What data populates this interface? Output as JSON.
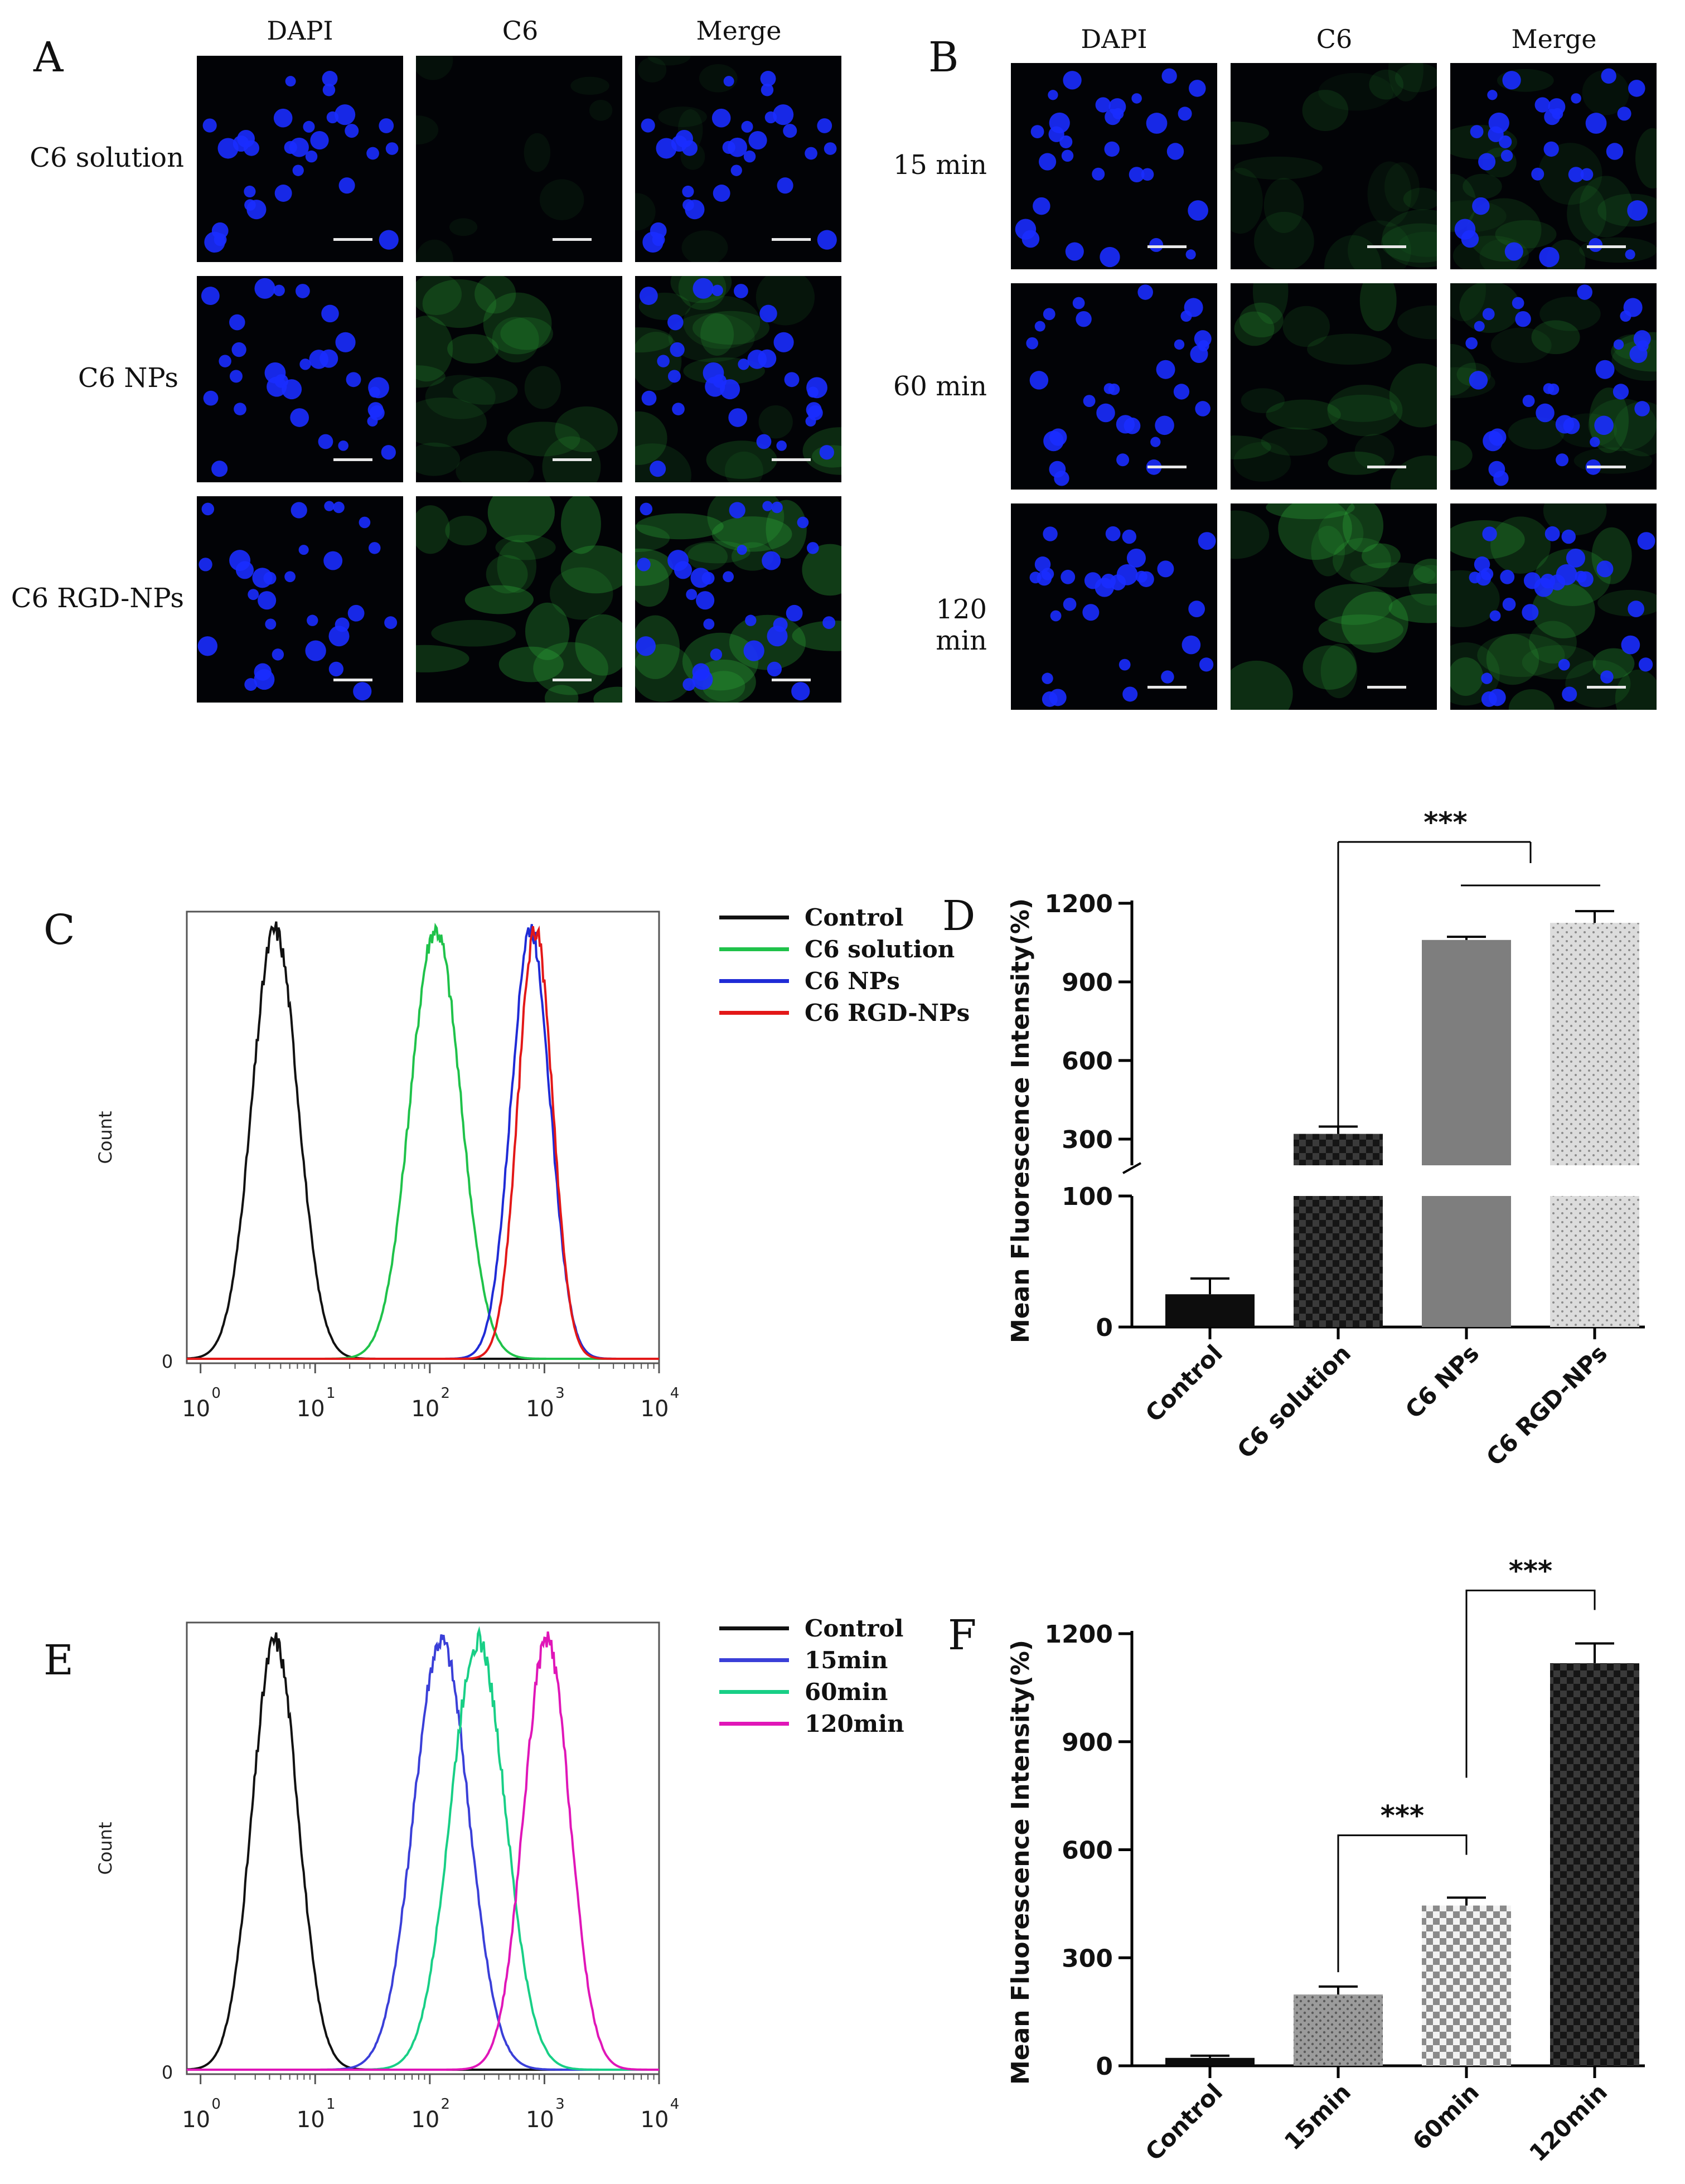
{
  "panels": {
    "A": {
      "letter": "A",
      "columns": [
        "DAPI",
        "C6",
        "Merge"
      ],
      "rows": [
        "C6 solution",
        "C6 NPs",
        "C6 RGD-NPs"
      ],
      "green_intensity": [
        0.05,
        0.55,
        0.85
      ]
    },
    "B": {
      "letter": "B",
      "columns": [
        "DAPI",
        "C6",
        "Merge"
      ],
      "rows": [
        "15 min",
        "60 min",
        "120 min"
      ],
      "green_intensity": [
        0.35,
        0.5,
        0.8
      ]
    },
    "C": {
      "letter": "C"
    },
    "D": {
      "letter": "D"
    },
    "E": {
      "letter": "E"
    },
    "F": {
      "letter": "F"
    }
  },
  "colors": {
    "dapi": "#1a2cff",
    "c6": "#2fae3a",
    "control": "#111111",
    "c6_solution": "#1fc24a",
    "c6_nps": "#1f2bd6",
    "c6_rgd_nps": "#e31818",
    "t15": "#3a3fd8",
    "t60": "#18cf86",
    "t120": "#e016b8"
  },
  "chart_data": [
    {
      "id": "C",
      "type": "line",
      "xscale": "log",
      "xlim": [
        1,
        10000
      ],
      "x_tick_labels": [
        "10",
        "10",
        "10",
        "10",
        "10"
      ],
      "x_tick_exponents": [
        "0",
        "1",
        "2",
        "3",
        "4"
      ],
      "ylabel": "Count",
      "y_zero_label": "0",
      "legend_position": "right",
      "series": [
        {
          "name": "Control",
          "color": "#111111",
          "peak_log10": 0.65,
          "sigma": 0.2
        },
        {
          "name": "C6 solution",
          "color": "#1fc24a",
          "peak_log10": 2.05,
          "sigma": 0.22
        },
        {
          "name": "C6 NPs",
          "color": "#1f2bd6",
          "peak_log10": 2.88,
          "sigma": 0.17
        },
        {
          "name": "C6 RGD-NPs",
          "color": "#e31818",
          "peak_log10": 2.92,
          "sigma": 0.15
        }
      ]
    },
    {
      "id": "D",
      "type": "bar",
      "ylabel": "Mean Fluorescence Intensity(%)",
      "ylim": [
        0,
        1200
      ],
      "axis_break": [
        100,
        200
      ],
      "y_ticks": [
        "0",
        "100",
        "300",
        "600",
        "900",
        "1200"
      ],
      "categories": [
        "Control",
        "C6 solution",
        "C6 NPs",
        "C6 RGD-NPs"
      ],
      "values": [
        25,
        320,
        1060,
        1125
      ],
      "errors": [
        12,
        28,
        12,
        45
      ],
      "significance": [
        {
          "label": "***"
        }
      ],
      "patterns": [
        "solid-black",
        "checker-dark",
        "solid-grey",
        "dots-light"
      ]
    },
    {
      "id": "E",
      "type": "line",
      "xscale": "log",
      "xlim": [
        1,
        10000
      ],
      "x_tick_labels": [
        "10",
        "10",
        "10",
        "10",
        "10"
      ],
      "x_tick_exponents": [
        "0",
        "1",
        "2",
        "3",
        "4"
      ],
      "ylabel": "Count",
      "y_zero_label": "0",
      "legend_position": "right",
      "series": [
        {
          "name": "Control",
          "color": "#111111",
          "peak_log10": 0.65,
          "sigma": 0.2
        },
        {
          "name": "15min",
          "color": "#3a3fd8",
          "peak_log10": 2.1,
          "sigma": 0.24
        },
        {
          "name": "60min",
          "color": "#18cf86",
          "peak_log10": 2.42,
          "sigma": 0.24
        },
        {
          "name": "120min",
          "color": "#e016b8",
          "peak_log10": 3.02,
          "sigma": 0.2
        }
      ]
    },
    {
      "id": "F",
      "type": "bar",
      "ylabel": "Mean Fluorescence Intensity(%)",
      "ylim": [
        0,
        1200
      ],
      "y_ticks": [
        "0",
        "300",
        "600",
        "900",
        "1200"
      ],
      "categories": [
        "Control",
        "15min",
        "60min",
        "120min"
      ],
      "values": [
        22,
        198,
        445,
        1118
      ],
      "errors": [
        6,
        22,
        22,
        55
      ],
      "significance": [
        {
          "label": "***"
        },
        {
          "label": "***"
        }
      ],
      "patterns": [
        "solid-black",
        "dots-mid",
        "checker-light",
        "checker-dark"
      ]
    }
  ]
}
